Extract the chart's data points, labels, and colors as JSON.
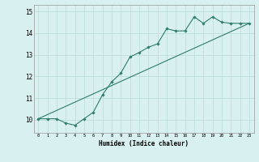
{
  "xlabel": "Humidex (Indice chaleur)",
  "background_color": "#d8f0ef",
  "grid_color": "#c0dede",
  "line_color": "#2e7d6e",
  "xlim": [
    -0.5,
    23.5
  ],
  "ylim": [
    9.4,
    15.3
  ],
  "xticks": [
    0,
    1,
    2,
    3,
    4,
    5,
    6,
    7,
    8,
    9,
    10,
    11,
    12,
    13,
    14,
    15,
    16,
    17,
    18,
    19,
    20,
    21,
    22,
    23
  ],
  "yticks": [
    10,
    11,
    12,
    13,
    14,
    15
  ],
  "curve_x": [
    0,
    1,
    2,
    3,
    4,
    5,
    6,
    7,
    8,
    9,
    10,
    11,
    12,
    13,
    14,
    15,
    16,
    17,
    18,
    19,
    20,
    21,
    22,
    23
  ],
  "curve_y": [
    10.05,
    10.05,
    10.05,
    9.85,
    9.75,
    10.05,
    10.35,
    11.15,
    11.75,
    12.15,
    12.9,
    13.1,
    13.35,
    13.5,
    14.2,
    14.1,
    14.1,
    14.75,
    14.45,
    14.75,
    14.5,
    14.45,
    14.45,
    14.45
  ],
  "line_x": [
    0,
    23
  ],
  "line_y": [
    10.05,
    14.45
  ]
}
